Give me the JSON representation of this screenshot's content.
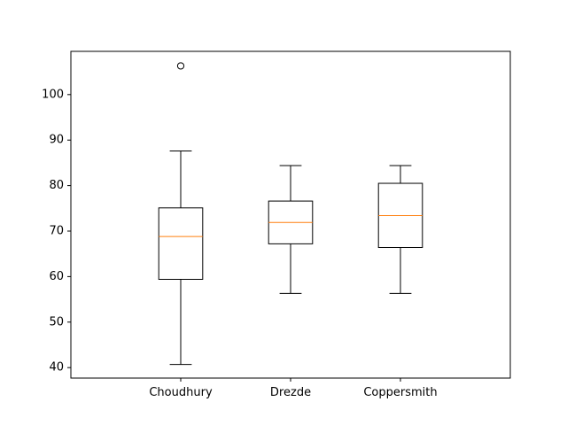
{
  "chart_data": {
    "type": "box",
    "title": "",
    "xlabel": "",
    "ylabel": "",
    "categories": [
      "Choudhury",
      "Drezde",
      "Coppersmith"
    ],
    "boxes": [
      {
        "name": "Choudhury",
        "whisker_low": 40.7,
        "q1": 59.4,
        "median": 68.8,
        "q3": 75.1,
        "whisker_high": 87.6,
        "outliers": [
          106.3
        ]
      },
      {
        "name": "Drezde",
        "whisker_low": 56.3,
        "q1": 67.2,
        "median": 71.9,
        "q3": 76.6,
        "whisker_high": 84.4,
        "outliers": []
      },
      {
        "name": "Coppersmith",
        "whisker_low": 56.3,
        "q1": 66.4,
        "median": 73.4,
        "q3": 80.5,
        "whisker_high": 84.4,
        "outliers": []
      }
    ],
    "ylim": [
      37.7,
      109.5
    ],
    "yticks": [
      40,
      50,
      60,
      70,
      80,
      90,
      100
    ],
    "grid": false,
    "legend": "none",
    "colors": {
      "box": "#000000",
      "median": "#ff7f0e",
      "outlier": "#000000"
    }
  }
}
